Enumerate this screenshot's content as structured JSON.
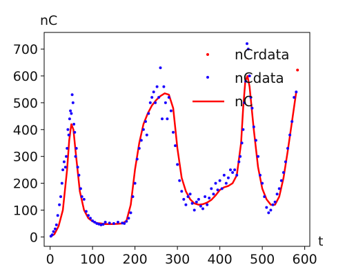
{
  "chart_data": {
    "type": "line",
    "ylabel": "nC",
    "xlabel": "t",
    "xlim": [
      -14,
      612
    ],
    "ylim": [
      -35,
      762
    ],
    "x_ticks": [
      0,
      100,
      200,
      300,
      400,
      500,
      600
    ],
    "y_ticks": [
      0,
      100,
      200,
      300,
      400,
      500,
      600,
      700
    ],
    "grid": false,
    "legend_position": "top-right",
    "legend": [
      {
        "label": "nCrdata",
        "style": "dot",
        "color": "#ff0000"
      },
      {
        "label": "nCdata",
        "style": "dot",
        "color": "#1a00ff"
      },
      {
        "label": "nC",
        "style": "line",
        "color": "#ff0000"
      }
    ],
    "colors": {
      "fit": "#ff0000",
      "data": "#1a00ff",
      "rdata": "#ff0000"
    },
    "series": [
      {
        "name": "nC",
        "style": "line",
        "x": [
          0,
          10,
          20,
          30,
          40,
          45,
          50,
          55,
          60,
          70,
          80,
          90,
          100,
          110,
          120,
          130,
          150,
          170,
          180,
          190,
          200,
          210,
          220,
          230,
          240,
          250,
          260,
          270,
          280,
          290,
          300,
          310,
          320,
          330,
          340,
          350,
          360,
          370,
          380,
          390,
          400,
          410,
          420,
          430,
          440,
          450,
          455,
          460,
          465,
          470,
          480,
          490,
          500,
          510,
          520,
          530,
          540,
          550,
          560,
          570,
          580
        ],
        "y": [
          0,
          10,
          40,
          100,
          250,
          360,
          420,
          400,
          320,
          170,
          100,
          70,
          58,
          52,
          50,
          48,
          48,
          50,
          60,
          120,
          250,
          350,
          420,
          460,
          490,
          510,
          525,
          535,
          530,
          480,
          330,
          220,
          170,
          140,
          125,
          120,
          122,
          128,
          138,
          155,
          175,
          185,
          190,
          200,
          230,
          350,
          480,
          580,
          600,
          560,
          400,
          260,
          180,
          140,
          120,
          120,
          150,
          220,
          320,
          430,
          540
        ]
      },
      {
        "name": "nCdata",
        "style": "dot",
        "x": [
          2,
          5,
          8,
          12,
          15,
          18,
          22,
          25,
          28,
          30,
          33,
          36,
          38,
          40,
          42,
          44,
          46,
          48,
          50,
          52,
          54,
          56,
          58,
          60,
          62,
          65,
          68,
          72,
          75,
          80,
          85,
          90,
          95,
          100,
          105,
          110,
          115,
          120,
          125,
          130,
          140,
          150,
          160,
          170,
          175,
          180,
          185,
          190,
          195,
          200,
          205,
          210,
          215,
          220,
          225,
          228,
          232,
          236,
          240,
          244,
          248,
          252,
          256,
          260,
          264,
          268,
          272,
          276,
          280,
          285,
          290,
          295,
          300,
          305,
          310,
          315,
          320,
          325,
          330,
          335,
          340,
          345,
          350,
          355,
          360,
          365,
          370,
          375,
          380,
          385,
          390,
          395,
          400,
          405,
          410,
          415,
          420,
          425,
          430,
          435,
          440,
          445,
          448,
          452,
          455,
          458,
          461,
          464,
          467,
          470,
          473,
          476,
          480,
          485,
          490,
          495,
          500,
          505,
          510,
          515,
          520,
          525,
          530,
          535,
          540,
          545,
          550,
          555,
          560,
          565,
          570,
          575,
          580
        ],
        "y": [
          3,
          8,
          20,
          30,
          45,
          80,
          120,
          150,
          200,
          250,
          280,
          260,
          300,
          330,
          400,
          380,
          440,
          470,
          460,
          530,
          500,
          420,
          390,
          300,
          330,
          260,
          230,
          180,
          150,
          140,
          95,
          80,
          70,
          60,
          55,
          50,
          48,
          45,
          47,
          55,
          52,
          50,
          55,
          52,
          50,
          58,
          70,
          90,
          150,
          200,
          290,
          330,
          360,
          400,
          430,
          380,
          460,
          500,
          520,
          540,
          500,
          560,
          520,
          630,
          440,
          560,
          500,
          440,
          520,
          470,
          390,
          340,
          270,
          210,
          170,
          140,
          120,
          150,
          160,
          125,
          100,
          130,
          140,
          115,
          105,
          150,
          120,
          145,
          180,
          160,
          200,
          175,
          210,
          180,
          230,
          200,
          220,
          250,
          240,
          250,
          230,
          280,
          300,
          350,
          400,
          500,
          580,
          720,
          700,
          600,
          520,
          480,
          410,
          360,
          300,
          230,
          200,
          150,
          110,
          90,
          100,
          120,
          130,
          160,
          180,
          210,
          240,
          280,
          330,
          380,
          430,
          520,
          540
        ]
      },
      {
        "name": "nCrdata",
        "style": "dot",
        "x": [
          583
        ],
        "y": [
          622
        ]
      }
    ]
  }
}
